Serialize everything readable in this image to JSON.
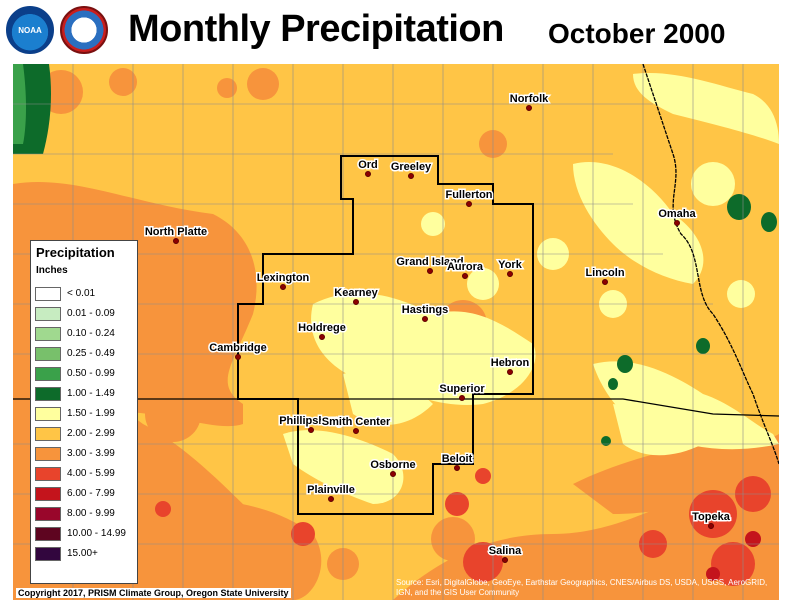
{
  "header": {
    "title": "Monthly Precipitation",
    "date": "October 2000",
    "logos": [
      {
        "icon": "noaa-logo-icon",
        "text": "NOAA"
      },
      {
        "icon": "nws-logo-icon",
        "text": "NATIONAL WEATHER SERVICE"
      }
    ]
  },
  "legend": {
    "title": "Precipitation",
    "units": "Inches",
    "items": [
      {
        "label": "< 0.01",
        "color": "#ffffff"
      },
      {
        "label": "0.01 - 0.09",
        "color": "#c7ecc1"
      },
      {
        "label": "0.10 - 0.24",
        "color": "#a0d98f"
      },
      {
        "label": "0.25 - 0.49",
        "color": "#78c06b"
      },
      {
        "label": "0.50 - 0.99",
        "color": "#3aa14a"
      },
      {
        "label": "1.00 - 1.49",
        "color": "#0d6b2a"
      },
      {
        "label": "1.50 - 1.99",
        "color": "#ffff9e"
      },
      {
        "label": "2.00 - 2.99",
        "color": "#ffc546"
      },
      {
        "label": "3.00 - 3.99",
        "color": "#f7943c"
      },
      {
        "label": "4.00 - 5.99",
        "color": "#e8442c"
      },
      {
        "label": "6.00 - 7.99",
        "color": "#c4141c"
      },
      {
        "label": "8.00 - 9.99",
        "color": "#99062b"
      },
      {
        "label": "10.00 - 14.99",
        "color": "#5e0520"
      },
      {
        "label": "15.00+",
        "color": "#32063e"
      }
    ]
  },
  "cities": [
    {
      "name": "Norfolk"
    },
    {
      "name": "Ord"
    },
    {
      "name": "Greeley"
    },
    {
      "name": "Fullerton"
    },
    {
      "name": "North Platte"
    },
    {
      "name": "Omaha"
    },
    {
      "name": "Grand Island"
    },
    {
      "name": "Aurora"
    },
    {
      "name": "York"
    },
    {
      "name": "Lincoln"
    },
    {
      "name": "Lexington"
    },
    {
      "name": "Kearney"
    },
    {
      "name": "Hastings"
    },
    {
      "name": "Holdrege"
    },
    {
      "name": "Cambridge"
    },
    {
      "name": "Hebron"
    },
    {
      "name": "Superior"
    },
    {
      "name": "Phillipsburg"
    },
    {
      "name": "Smith Center"
    },
    {
      "name": "Beloit"
    },
    {
      "name": "Osborne"
    },
    {
      "name": "Plainville"
    },
    {
      "name": "Topeka"
    },
    {
      "name": "Salina"
    }
  ],
  "footer": {
    "copyright": "Copyright 2017, PRISM Climate Group, Oregon State University",
    "source": "Source: Esri, DigitalGlobe, GeoEye, Earthstar Geographics, CNES/Airbus DS, USDA, USGS, AeroGRID, IGN, and the GIS User Community"
  }
}
